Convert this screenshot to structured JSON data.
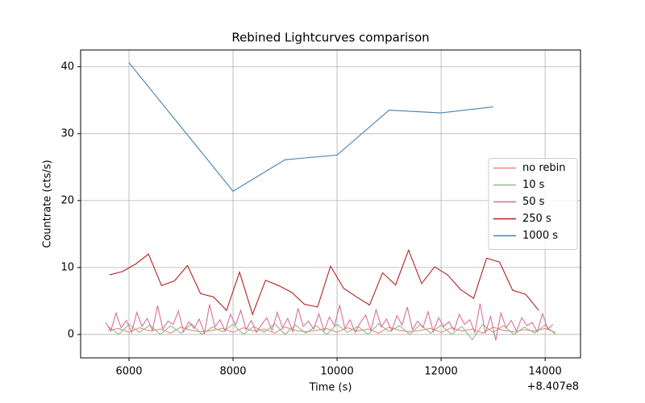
{
  "chart_data": {
    "type": "line",
    "title": "Rebined Lightcurves comparison",
    "xlabel": "Time (s)",
    "ylabel": "Countrate (cts/s)",
    "x_offset_label": "+8.407e8",
    "xlim": [
      5070,
      14680
    ],
    "ylim": [
      -3.5,
      42.5
    ],
    "xticks": [
      6000,
      8000,
      10000,
      12000,
      14000
    ],
    "yticks": [
      0,
      10,
      20,
      30,
      40
    ],
    "grid": true,
    "legend": "center right",
    "series": [
      {
        "name": "no rebin",
        "color": "#e8848a",
        "x": [
          5600,
          5800,
          6000,
          6200,
          6400,
          6600,
          6800,
          7000,
          7200,
          7400,
          7600,
          7800,
          8000,
          8200,
          8400,
          8600,
          8800,
          9000,
          9200,
          9400,
          9600,
          9800,
          10000,
          10200,
          10400,
          10600,
          10800,
          11000,
          11200,
          11400,
          11600,
          11800,
          12000,
          12200,
          12400,
          12600,
          12800,
          13000,
          13200,
          13400,
          13600,
          13800,
          14000,
          14200
        ],
        "values": [
          0.6,
          0.9,
          0.3,
          1.0,
          0.5,
          0.8,
          0.2,
          1.1,
          0.6,
          0.4,
          0.6,
          0.9,
          0.3,
          1.0,
          0.5,
          0.8,
          0.2,
          1.1,
          0.6,
          0.4,
          0.6,
          0.9,
          0.3,
          1.0,
          0.5,
          0.8,
          0.2,
          1.1,
          0.6,
          0.4,
          0.6,
          0.9,
          0.3,
          1.0,
          0.5,
          0.8,
          0.2,
          1.1,
          0.6,
          0.4,
          0.7,
          0.5,
          0.9,
          0.3
        ]
      },
      {
        "name": "10 s",
        "color": "#8fbc7f",
        "x": [
          5600,
          5800,
          6000,
          6200,
          6400,
          6600,
          6800,
          7000,
          7200,
          7400,
          7600,
          7800,
          8000,
          8200,
          8400,
          8600,
          8800,
          9000,
          9200,
          9400,
          9600,
          9800,
          10000,
          10200,
          10400,
          10600,
          10800,
          11000,
          11200,
          11400,
          11600,
          11800,
          12000,
          12200,
          12400,
          12600,
          12800,
          13000,
          13200,
          13400,
          13600,
          13800,
          14000,
          14200
        ],
        "values": [
          1.2,
          0,
          1.5,
          0.3,
          1.4,
          0,
          1.3,
          0.2,
          1.6,
          0,
          1.1,
          0.4,
          1.5,
          0,
          1.2,
          0.3,
          1.6,
          0,
          1.4,
          0.2,
          1.3,
          0,
          1.5,
          0.3,
          1.2,
          0,
          1.6,
          0.4,
          1.3,
          0,
          1.5,
          0.2,
          1.4,
          0,
          1.2,
          -0.8,
          1.5,
          0.3,
          1.3,
          0,
          1.1,
          0.2,
          1.4,
          0
        ]
      },
      {
        "name": "50 s",
        "color": "#d9709a",
        "x": [
          5550,
          5650,
          5750,
          5850,
          5950,
          6050,
          6150,
          6250,
          6350,
          6450,
          6550,
          6650,
          6750,
          6850,
          6950,
          7050,
          7150,
          7250,
          7350,
          7450,
          7550,
          7650,
          7750,
          7850,
          7950,
          8050,
          8150,
          8250,
          8350,
          8450,
          8550,
          8650,
          8750,
          8850,
          8950,
          9050,
          9150,
          9250,
          9350,
          9450,
          9550,
          9650,
          9750,
          9850,
          9950,
          10050,
          10150,
          10250,
          10350,
          10450,
          10550,
          10650,
          10750,
          10850,
          10950,
          11050,
          11150,
          11250,
          11350,
          11450,
          11550,
          11650,
          11750,
          11850,
          11950,
          12050,
          12150,
          12250,
          12350,
          12450,
          12550,
          12650,
          12750,
          12850,
          12950,
          13050,
          13150,
          13250,
          13350,
          13450,
          13550,
          13650,
          13750,
          13850,
          13950,
          14050,
          14150
        ],
        "values": [
          1.8,
          0.5,
          3.2,
          1.0,
          2.1,
          0.3,
          3.3,
          1.2,
          2.4,
          0.6,
          4.3,
          0.8,
          2.0,
          1.5,
          3.5,
          0.4,
          1.9,
          0.9,
          2.3,
          0.2,
          4.5,
          1.1,
          2.2,
          0.5,
          3.0,
          1.4,
          3.6,
          0.7,
          2.1,
          0.3,
          1.5,
          2.5,
          0.6,
          3.3,
          1.0,
          2.4,
          0.4,
          3.9,
          1.2,
          2.0,
          0.8,
          3.1,
          0.5,
          2.6,
          1.3,
          4.4,
          0.9,
          2.2,
          0.3,
          1.8,
          2.9,
          0.6,
          3.7,
          1.1,
          2.3,
          0.5,
          2.8,
          1.4,
          4.1,
          0.7,
          2.0,
          1.0,
          3.4,
          0.4,
          2.5,
          1.2,
          1.9,
          0.6,
          3.0,
          1.5,
          2.2,
          0.3,
          4.6,
          0.2,
          2.7,
          -0.9,
          3.2,
          1.0,
          2.1,
          0.5,
          2.5,
          1.3,
          1.8,
          0.4,
          3.1,
          0.8,
          1.5
        ]
      },
      {
        "name": "250 s",
        "color": "#b22222",
        "x": [
          5625,
          5875,
          6125,
          6375,
          6625,
          6875,
          7125,
          7375,
          7625,
          7875,
          8125,
          8375,
          8625,
          8875,
          9125,
          9375,
          9625,
          9875,
          10125,
          10375,
          10625,
          10875,
          11125,
          11375,
          11625,
          11875,
          12125,
          12375,
          12625,
          12875,
          13125,
          13375,
          13625,
          13875
        ],
        "values": [
          8.9,
          9.4,
          10.5,
          12.0,
          7.3,
          8.0,
          10.3,
          6.1,
          5.6,
          3.6,
          9.3,
          3.0,
          8.1,
          7.3,
          6.3,
          4.5,
          4.1,
          10.2,
          6.9,
          5.6,
          4.4,
          9.2,
          7.4,
          12.6,
          7.6,
          10.1,
          8.9,
          6.7,
          5.4,
          11.4,
          10.8,
          6.6,
          6.0,
          3.6
        ]
      },
      {
        "name": "1000 s",
        "color": "#4682b4",
        "x": [
          6000,
          7000,
          8000,
          9000,
          10000,
          11000,
          12000,
          13000
        ],
        "values": [
          40.6,
          31.0,
          21.4,
          26.1,
          26.8,
          33.5,
          33.1,
          34.0
        ]
      }
    ]
  }
}
